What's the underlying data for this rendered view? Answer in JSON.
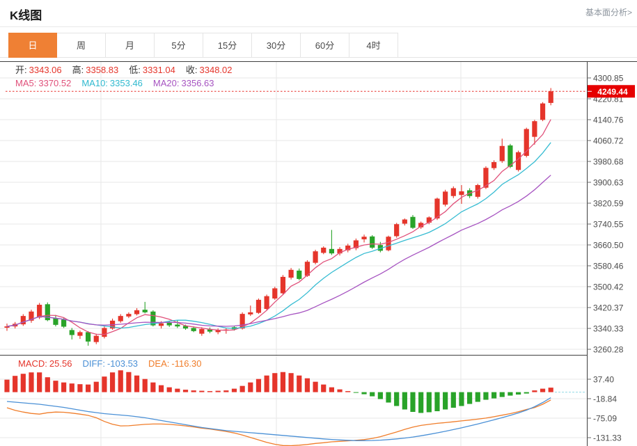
{
  "header": {
    "title": "K线图",
    "link_label": "基本面分析>"
  },
  "tabs": {
    "active_index": 0,
    "items": [
      "日",
      "周",
      "月",
      "5分",
      "15分",
      "30分",
      "60分",
      "4时"
    ]
  },
  "info": {
    "ohlc_label_color": "#333333",
    "ohlc_value_color": "#e5352b",
    "ohlc": [
      {
        "name": "open",
        "label": "开:",
        "value": "3343.06"
      },
      {
        "name": "high",
        "label": "高:",
        "value": "3358.83"
      },
      {
        "name": "low",
        "label": "低:",
        "value": "3331.04"
      },
      {
        "name": "close",
        "label": "收:",
        "value": "3348.02"
      }
    ],
    "ma": [
      {
        "name": "ma5",
        "label": "MA5:",
        "value": "3370.52",
        "color": "#e0507a"
      },
      {
        "name": "ma10",
        "label": "MA10:",
        "value": "3353.46",
        "color": "#2fb9cf"
      },
      {
        "name": "ma20",
        "label": "MA20:",
        "value": "3356.63",
        "color": "#a653c1"
      }
    ]
  },
  "macd_header": [
    {
      "name": "macd",
      "label": "MACD:",
      "value": "25.56",
      "color": "#e5352b"
    },
    {
      "name": "diff",
      "label": "DIFF:",
      "value": "-103.53",
      "color": "#4a90d6"
    },
    {
      "name": "dea",
      "label": "DEA:",
      "value": "-116.30",
      "color": "#f07d2a"
    }
  ],
  "chart_data": {
    "type": "candlestick",
    "panels": [
      "price",
      "macd"
    ],
    "grid": true,
    "legend_position": "top-left",
    "price_axis": {
      "labels": [
        "4300.85",
        "4220.81",
        "4140.76",
        "4060.72",
        "3980.68",
        "3900.63",
        "3820.59",
        "3740.55",
        "3660.50",
        "3580.46",
        "3500.42",
        "3420.37",
        "3340.33",
        "3260.28"
      ],
      "range": [
        3260.28,
        4300.85
      ],
      "current_price": "4249.44",
      "current_price_value": 4249.44
    },
    "macd_axis": {
      "labels": [
        "37.40",
        "-18.84",
        "-75.09",
        "-131.33"
      ],
      "range": [
        -131.33,
        37.4
      ]
    },
    "ma_periods": [
      5,
      10,
      20
    ],
    "candles": [
      [
        3343.06,
        3358.83,
        3331.04,
        3348.02
      ],
      [
        3348,
        3365,
        3340,
        3358
      ],
      [
        3356,
        3395,
        3350,
        3388
      ],
      [
        3370,
        3412,
        3362,
        3405
      ],
      [
        3382,
        3438,
        3376,
        3431
      ],
      [
        3433,
        3440,
        3368,
        3372
      ],
      [
        3380,
        3392,
        3348,
        3354
      ],
      [
        3374,
        3380,
        3342,
        3347
      ],
      [
        3334,
        3342,
        3298,
        3315
      ],
      [
        3312,
        3332,
        3300,
        3326
      ],
      [
        3326,
        3330,
        3274,
        3290
      ],
      [
        3288,
        3320,
        3280,
        3312
      ],
      [
        3308,
        3348,
        3302,
        3342
      ],
      [
        3340,
        3378,
        3335,
        3370
      ],
      [
        3368,
        3395,
        3362,
        3388
      ],
      [
        3386,
        3402,
        3380,
        3396
      ],
      [
        3395,
        3418,
        3390,
        3410
      ],
      [
        3412,
        3442,
        3398,
        3402
      ],
      [
        3405,
        3410,
        3348,
        3352
      ],
      [
        3350,
        3368,
        3340,
        3360
      ],
      [
        3362,
        3370,
        3346,
        3352
      ],
      [
        3355,
        3372,
        3342,
        3348
      ],
      [
        3350,
        3355,
        3335,
        3340
      ],
      [
        3342,
        3348,
        3326,
        3330
      ],
      [
        3320,
        3345,
        3312,
        3338
      ],
      [
        3336,
        3344,
        3322,
        3328
      ],
      [
        3326,
        3340,
        3318,
        3334
      ],
      [
        3332,
        3342,
        3320,
        3336
      ],
      [
        3345,
        3350,
        3332,
        3337
      ],
      [
        3340,
        3402,
        3336,
        3396
      ],
      [
        3394,
        3428,
        3388,
        3402
      ],
      [
        3400,
        3455,
        3396,
        3450
      ],
      [
        3415,
        3470,
        3410,
        3464
      ],
      [
        3455,
        3500,
        3450,
        3494
      ],
      [
        3475,
        3545,
        3470,
        3538
      ],
      [
        3535,
        3572,
        3528,
        3565
      ],
      [
        3562,
        3570,
        3525,
        3530
      ],
      [
        3542,
        3602,
        3538,
        3596
      ],
      [
        3592,
        3642,
        3586,
        3636
      ],
      [
        3630,
        3655,
        3625,
        3650
      ],
      [
        3645,
        3718,
        3622,
        3628
      ],
      [
        3628,
        3652,
        3620,
        3645
      ],
      [
        3640,
        3665,
        3632,
        3658
      ],
      [
        3648,
        3685,
        3640,
        3678
      ],
      [
        3682,
        3700,
        3670,
        3692
      ],
      [
        3693,
        3698,
        3645,
        3650
      ],
      [
        3660,
        3672,
        3632,
        3638
      ],
      [
        3640,
        3696,
        3636,
        3692
      ],
      [
        3694,
        3745,
        3688,
        3740
      ],
      [
        3742,
        3762,
        3735,
        3758
      ],
      [
        3768,
        3775,
        3722,
        3726
      ],
      [
        3728,
        3750,
        3722,
        3745
      ],
      [
        3746,
        3770,
        3740,
        3766
      ],
      [
        3762,
        3842,
        3756,
        3838
      ],
      [
        3815,
        3872,
        3808,
        3865
      ],
      [
        3848,
        3885,
        3840,
        3878
      ],
      [
        3852,
        3890,
        3818,
        3866
      ],
      [
        3870,
        3878,
        3840,
        3848
      ],
      [
        3845,
        3895,
        3838,
        3890
      ],
      [
        3880,
        3962,
        3875,
        3956
      ],
      [
        3955,
        3985,
        3948,
        3978
      ],
      [
        3982,
        4068,
        3975,
        4040
      ],
      [
        4042,
        4048,
        3955,
        3960
      ],
      [
        3948,
        4022,
        3942,
        4016
      ],
      [
        4002,
        4110,
        3996,
        4105
      ],
      [
        4075,
        4140,
        4045,
        4135
      ],
      [
        4140,
        4208,
        4135,
        4203
      ],
      [
        4205,
        4262,
        4196,
        4249.44
      ]
    ],
    "macd_hist": [
      36,
      47,
      53,
      57,
      57,
      43,
      33,
      28,
      25,
      23,
      22,
      30,
      45,
      57,
      63,
      58,
      48,
      38,
      28,
      20,
      14,
      10,
      7,
      5,
      4,
      3,
      4,
      5,
      10,
      18,
      28,
      38,
      48,
      55,
      58,
      55,
      48,
      40,
      30,
      22,
      14,
      8,
      3,
      -2,
      -6,
      -12,
      -20,
      -30,
      -40,
      -50,
      -57,
      -60,
      -58,
      -55,
      -50,
      -45,
      -40,
      -34,
      -28,
      -22,
      -18,
      -14,
      -10,
      -7,
      -4,
      5,
      10,
      13
    ],
    "diff": [
      -27,
      -29,
      -31,
      -33,
      -35,
      -38,
      -41,
      -44,
      -48,
      -52,
      -56,
      -59,
      -62,
      -64,
      -66,
      -68,
      -71,
      -74,
      -78,
      -82,
      -86,
      -90,
      -94,
      -98,
      -102,
      -105,
      -108,
      -111,
      -113,
      -115,
      -117,
      -119,
      -121,
      -123,
      -125,
      -127,
      -129,
      -131,
      -133,
      -135,
      -136.5,
      -138,
      -139,
      -140,
      -140,
      -139.5,
      -138.5,
      -137,
      -135,
      -132.5,
      -129.5,
      -126,
      -122,
      -117.5,
      -113,
      -108,
      -103,
      -97.5,
      -92,
      -86,
      -80,
      -73.5,
      -67,
      -60,
      -52,
      -42,
      -30,
      -16
    ],
    "colors": {
      "up": "#e5352b",
      "down": "#29a329",
      "ma5": "#e0507a",
      "ma10": "#36bcd2",
      "ma20": "#a653c1",
      "diff_line": "#4a90d6",
      "dea_line": "#f07d2a",
      "grid": "#e7e7e7",
      "axis": "#3f3f3f",
      "axis_text": "#4b4b4b",
      "current_line": "#e8302a",
      "badge_bg": "#e60000",
      "zero_dash": "#90d9e6"
    }
  }
}
